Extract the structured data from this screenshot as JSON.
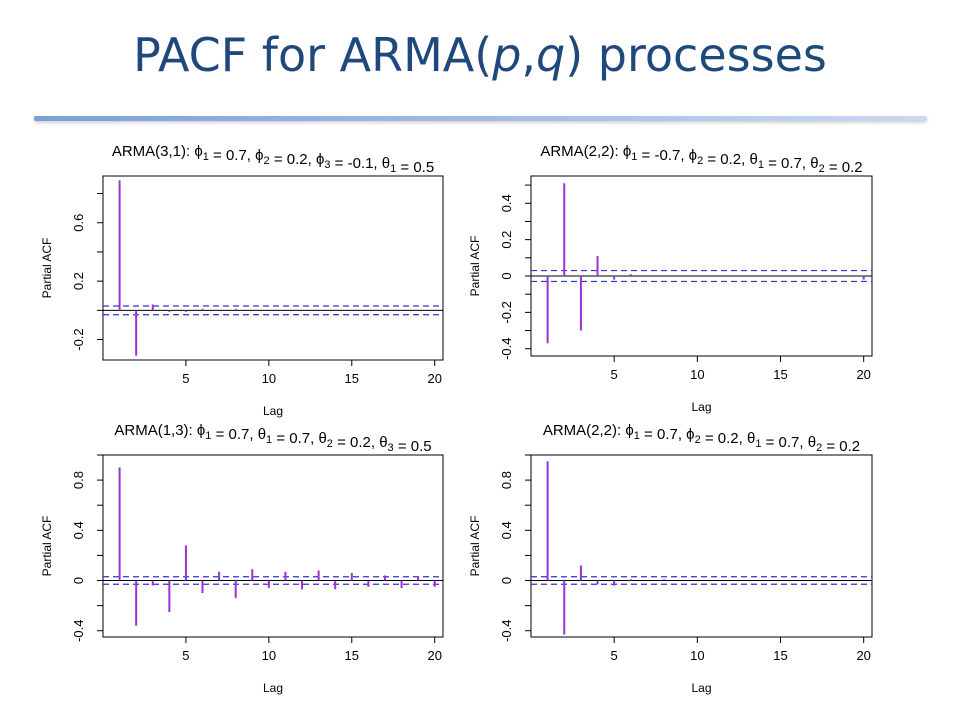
{
  "slide": {
    "title_pre": "PACF for ARMA(",
    "title_p": "p",
    "title_comma": ",",
    "title_q": "q",
    "title_post": ") processes"
  },
  "colors": {
    "spike": "#9b30d9",
    "ci": "#3333cc",
    "axis": "#000000",
    "title": "#1f497d"
  },
  "chart_data": [
    {
      "type": "bar",
      "title": "ARMA(3,1): ϕ1 = 0.7, ϕ2 = 0.2, ϕ3 = -0.1, θ1 = 0.5",
      "xlabel": "Lag",
      "ylabel": "Partial ACF",
      "xlim": [
        0,
        20.5
      ],
      "ylim": [
        -0.34,
        0.92
      ],
      "xticks": [
        5,
        10,
        15,
        20
      ],
      "yticks": [
        -0.2,
        0.2,
        0.6
      ],
      "ci": 0.03,
      "lags": [
        1,
        2,
        3,
        4,
        5,
        6,
        7,
        8,
        9,
        10,
        11,
        12,
        13,
        14,
        15,
        16,
        17,
        18,
        19,
        20
      ],
      "values": [
        0.89,
        -0.31,
        0.04,
        -0.01,
        -0.01,
        0.01,
        0.0,
        0.01,
        0.0,
        0.0,
        0.0,
        0.0,
        0.0,
        0.0,
        0.0,
        0.0,
        0.0,
        0.0,
        0.0,
        0.0
      ]
    },
    {
      "type": "bar",
      "title": "ARMA(2,2): ϕ1 = -0.7, ϕ2 = 0.2, θ1 = 0.7, θ2 = 0.2",
      "xlabel": "Lag",
      "ylabel": "Partial ACF",
      "xlim": [
        0,
        20.5
      ],
      "ylim": [
        -0.44,
        0.55
      ],
      "xticks": [
        5,
        10,
        15,
        20
      ],
      "yticks": [
        -0.4,
        -0.2,
        0.0,
        0.2,
        0.4
      ],
      "ci": 0.03,
      "lags": [
        1,
        2,
        3,
        4,
        5,
        6,
        7,
        8,
        9,
        10,
        11,
        12,
        13,
        14,
        15,
        16,
        17,
        18,
        19,
        20
      ],
      "values": [
        -0.37,
        0.51,
        -0.3,
        0.11,
        -0.02,
        0.01,
        0.0,
        0.0,
        0.0,
        0.0,
        0.0,
        0.0,
        0.0,
        0.0,
        0.0,
        0.0,
        0.0,
        0.0,
        0.0,
        -0.02
      ]
    },
    {
      "type": "bar",
      "title": "ARMA(1,3): ϕ1 = 0.7, θ1 = 0.7, θ2 = 0.2, θ3 = 0.5",
      "xlabel": "Lag",
      "ylabel": "Partial ACF",
      "xlim": [
        0,
        20.5
      ],
      "ylim": [
        -0.45,
        1.0
      ],
      "xticks": [
        5,
        10,
        15,
        20
      ],
      "yticks": [
        -0.4,
        0.0,
        0.4,
        0.8
      ],
      "ci": 0.03,
      "lags": [
        1,
        2,
        3,
        4,
        5,
        6,
        7,
        8,
        9,
        10,
        11,
        12,
        13,
        14,
        15,
        16,
        17,
        18,
        19,
        20
      ],
      "values": [
        0.9,
        -0.36,
        -0.04,
        -0.25,
        0.28,
        -0.1,
        0.07,
        -0.14,
        0.09,
        -0.06,
        0.07,
        -0.07,
        0.08,
        -0.07,
        0.06,
        -0.05,
        0.04,
        -0.06,
        0.03,
        -0.05
      ]
    },
    {
      "type": "bar",
      "title": "ARMA(2,2): ϕ1 = 0.7, ϕ2 = 0.2, θ1 = 0.7, θ2 = 0.2",
      "xlabel": "Lag",
      "ylabel": "Partial ACF",
      "xlim": [
        0,
        20.5
      ],
      "ylim": [
        -0.45,
        1.0
      ],
      "xticks": [
        5,
        10,
        15,
        20
      ],
      "yticks": [
        -0.4,
        0.0,
        0.4,
        0.8
      ],
      "ci": 0.03,
      "lags": [
        1,
        2,
        3,
        4,
        5,
        6,
        7,
        8,
        9,
        10,
        11,
        12,
        13,
        14,
        15,
        16,
        17,
        18,
        19,
        20
      ],
      "values": [
        0.95,
        -0.43,
        0.12,
        -0.03,
        -0.04,
        0.01,
        0.0,
        0.01,
        0.0,
        0.0,
        0.0,
        0.0,
        0.0,
        0.0,
        0.0,
        0.0,
        0.0,
        0.0,
        0.0,
        0.0
      ]
    }
  ]
}
